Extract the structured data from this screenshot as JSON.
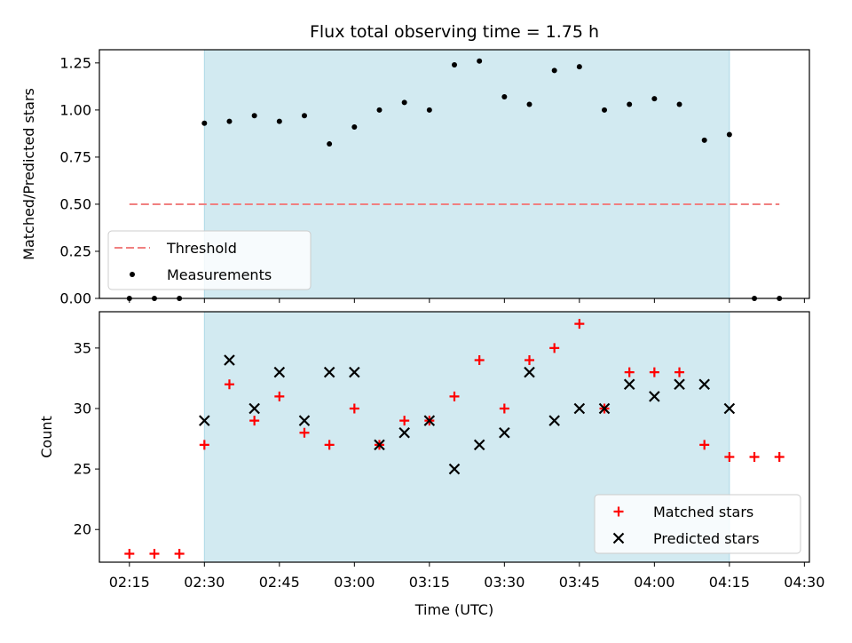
{
  "chart_data": {
    "title": "Flux total observing time = 1.75 h",
    "xlabel": "Time (UTC)",
    "x_ticks": [
      "02:15",
      "02:30",
      "02:45",
      "03:00",
      "03:15",
      "03:30",
      "03:45",
      "04:00",
      "04:15",
      "04:30"
    ],
    "x_range": [
      "02:09",
      "04:31"
    ],
    "shaded_interval": [
      "02:30",
      "04:15"
    ],
    "colors": {
      "shade": "#add8e6",
      "threshold": "#f08080",
      "matched": "#ff0000",
      "predicted": "#000000",
      "measurements": "#000000"
    },
    "panels": [
      {
        "type": "scatter",
        "ylabel": "Matched/Predicted stars",
        "ylim": [
          0,
          1.32
        ],
        "y_ticks": [
          "0.00",
          "0.25",
          "0.50",
          "0.75",
          "1.00",
          "1.25"
        ],
        "legend_position": "lower-left",
        "threshold": {
          "name": "Threshold",
          "value": 0.5,
          "x_start": "02:15",
          "x_end": "04:25",
          "style": "dashed"
        },
        "series": [
          {
            "name": "Measurements",
            "marker": "dot",
            "x": [
              "02:15",
              "02:20",
              "02:25",
              "02:30",
              "02:35",
              "02:40",
              "02:45",
              "02:50",
              "02:55",
              "03:00",
              "03:05",
              "03:10",
              "03:15",
              "03:20",
              "03:25",
              "03:30",
              "03:35",
              "03:40",
              "03:45",
              "03:50",
              "03:55",
              "04:00",
              "04:05",
              "04:10",
              "04:15",
              "04:20",
              "04:25"
            ],
            "y": [
              0,
              0,
              0,
              0.93,
              0.94,
              0.97,
              0.94,
              0.97,
              0.82,
              0.91,
              1.0,
              1.04,
              1.0,
              1.24,
              1.26,
              1.07,
              1.03,
              1.21,
              1.23,
              1.0,
              1.03,
              1.06,
              1.03,
              0.84,
              0.87,
              0,
              0
            ]
          }
        ]
      },
      {
        "type": "scatter",
        "ylabel": "Count",
        "ylim": [
          17.3,
          38.0
        ],
        "y_ticks": [
          "20",
          "25",
          "30",
          "35"
        ],
        "legend_position": "lower-right",
        "series": [
          {
            "name": "Matched stars",
            "marker": "plus",
            "x": [
              "02:15",
              "02:20",
              "02:25",
              "02:30",
              "02:35",
              "02:40",
              "02:45",
              "02:50",
              "02:55",
              "03:00",
              "03:05",
              "03:10",
              "03:15",
              "03:20",
              "03:25",
              "03:30",
              "03:35",
              "03:40",
              "03:45",
              "03:50",
              "03:55",
              "04:00",
              "04:05",
              "04:10",
              "04:15",
              "04:20",
              "04:25"
            ],
            "y": [
              18,
              18,
              18,
              27,
              32,
              29,
              31,
              28,
              27,
              30,
              27,
              29,
              29,
              31,
              34,
              30,
              34,
              35,
              37,
              30,
              33,
              33,
              33,
              27,
              26,
              26,
              26
            ]
          },
          {
            "name": "Predicted stars",
            "marker": "x",
            "x": [
              "02:30",
              "02:35",
              "02:40",
              "02:45",
              "02:50",
              "02:55",
              "03:00",
              "03:05",
              "03:10",
              "03:15",
              "03:20",
              "03:25",
              "03:30",
              "03:35",
              "03:40",
              "03:45",
              "03:50",
              "03:55",
              "04:00",
              "04:05",
              "04:10",
              "04:15"
            ],
            "y": [
              29,
              34,
              30,
              33,
              29,
              33,
              33,
              27,
              28,
              29,
              25,
              27,
              28,
              33,
              29,
              30,
              30,
              32,
              31,
              32,
              32,
              30
            ]
          }
        ]
      }
    ]
  }
}
